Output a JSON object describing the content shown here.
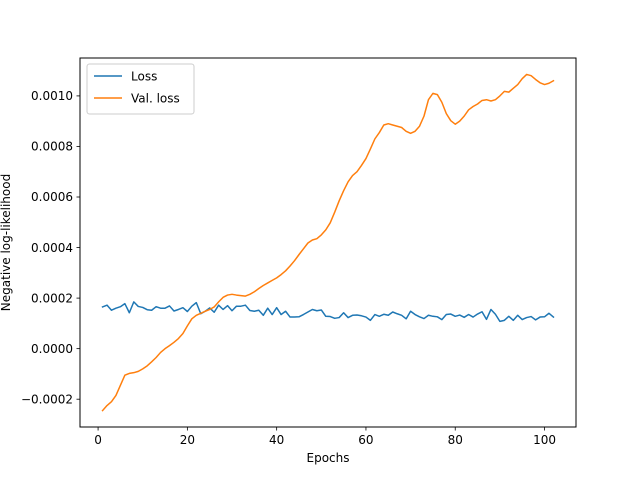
{
  "chart_data": {
    "type": "line",
    "title": "",
    "xlabel": "Epochs",
    "ylabel": "Negative log-likelihood",
    "xlim": [
      -4.05,
      107.05
    ],
    "ylim": [
      -0.00031,
      0.00115
    ],
    "xticks": [
      0,
      20,
      40,
      60,
      80,
      100
    ],
    "xtick_labels": [
      "0",
      "20",
      "40",
      "60",
      "80",
      "100"
    ],
    "yticks": [
      -0.0002,
      0.0,
      0.0002,
      0.0004,
      0.0006,
      0.0008,
      0.001
    ],
    "ytick_labels": [
      "−0.0002",
      "0.0000",
      "0.0002",
      "0.0004",
      "0.0006",
      "0.0008",
      "0.0010"
    ],
    "grid": false,
    "legend_position": "top-left",
    "series": [
      {
        "name": "Loss",
        "color": "#1f77b4",
        "x": [
          1,
          2,
          3,
          4,
          5,
          6,
          7,
          8,
          9,
          10,
          11,
          12,
          13,
          14,
          15,
          16,
          17,
          18,
          19,
          20,
          21,
          22,
          23,
          24,
          25,
          26,
          27,
          28,
          29,
          30,
          31,
          32,
          33,
          34,
          35,
          36,
          37,
          38,
          39,
          40,
          41,
          42,
          43,
          44,
          45,
          46,
          47,
          48,
          49,
          50,
          51,
          52,
          53,
          54,
          55,
          56,
          57,
          58,
          59,
          60,
          61,
          62,
          63,
          64,
          65,
          66,
          67,
          68,
          69,
          70,
          71,
          72,
          73,
          74,
          75,
          76,
          77,
          78,
          79,
          80,
          81,
          82,
          83,
          84,
          85,
          86,
          87,
          88,
          89,
          90,
          91,
          92,
          93,
          94,
          95,
          96,
          97,
          98,
          99,
          100,
          101,
          102
        ],
        "y": [
          0.000165,
          0.000172,
          0.000152,
          0.00016,
          0.000166,
          0.000178,
          0.000142,
          0.000185,
          0.000167,
          0.000163,
          0.000154,
          0.000152,
          0.000166,
          0.00016,
          0.00016,
          0.000169,
          0.000149,
          0.000155,
          0.000162,
          0.000147,
          0.000168,
          0.000182,
          0.000138,
          0.000148,
          0.000161,
          0.000144,
          0.000172,
          0.000155,
          0.00017,
          0.00015,
          0.000168,
          0.000168,
          0.000172,
          0.000151,
          0.000148,
          0.000152,
          0.000132,
          0.00016,
          0.000135,
          0.000162,
          0.000135,
          0.000148,
          0.000125,
          0.000125,
          0.000126,
          0.000135,
          0.000145,
          0.000155,
          0.00015,
          0.000153,
          0.000128,
          0.000127,
          0.00012,
          0.000123,
          0.000142,
          0.000123,
          0.000132,
          0.000133,
          0.00013,
          0.000125,
          0.000112,
          0.000135,
          0.000128,
          0.000136,
          0.000132,
          0.000145,
          0.000138,
          0.000132,
          0.000118,
          0.000148,
          0.000135,
          0.000126,
          0.000119,
          0.000132,
          0.000128,
          0.000126,
          0.000115,
          0.000135,
          0.000137,
          0.000128,
          0.000133,
          0.000124,
          0.000135,
          0.000125,
          0.000137,
          0.000146,
          0.000116,
          0.000155,
          0.000136,
          0.000108,
          0.000112,
          0.000128,
          0.000112,
          0.000132,
          0.000115,
          0.000123,
          0.000127,
          0.000114,
          0.000125,
          0.000126,
          0.00014,
          0.000125
        ]
      },
      {
        "name": "Val. loss",
        "color": "#ff7f0e",
        "x": [
          1,
          2,
          3,
          4,
          5,
          6,
          7,
          8,
          9,
          10,
          11,
          12,
          13,
          14,
          15,
          16,
          17,
          18,
          19,
          20,
          21,
          22,
          23,
          24,
          25,
          26,
          27,
          28,
          29,
          30,
          31,
          32,
          33,
          34,
          35,
          36,
          37,
          38,
          39,
          40,
          41,
          42,
          43,
          44,
          45,
          46,
          47,
          48,
          49,
          50,
          51,
          52,
          53,
          54,
          55,
          56,
          57,
          58,
          59,
          60,
          61,
          62,
          63,
          64,
          65,
          66,
          67,
          68,
          69,
          70,
          71,
          72,
          73,
          74,
          75,
          76,
          77,
          78,
          79,
          80,
          81,
          82,
          83,
          84,
          85,
          86,
          87,
          88,
          89,
          90,
          91,
          92,
          93,
          94,
          95,
          96,
          97,
          98,
          99,
          100,
          101,
          102
        ],
        "y": [
          -0.000245,
          -0.000225,
          -0.00021,
          -0.000185,
          -0.000145,
          -0.000105,
          -9.8e-05,
          -9.5e-05,
          -9e-05,
          -8e-05,
          -6.8e-05,
          -5.2e-05,
          -3.5e-05,
          -1.5e-05,
          0.0,
          1.2e-05,
          2.5e-05,
          4e-05,
          6e-05,
          9e-05,
          0.000118,
          0.000132,
          0.00014,
          0.000148,
          0.000155,
          0.000165,
          0.000185,
          0.000203,
          0.000212,
          0.000215,
          0.000212,
          0.00021,
          0.000208,
          0.000215,
          0.000225,
          0.000238,
          0.00025,
          0.00026,
          0.00027,
          0.00028,
          0.000293,
          0.000308,
          0.000327,
          0.000348,
          0.000372,
          0.000395,
          0.000418,
          0.00043,
          0.000435,
          0.00045,
          0.00047,
          0.000498,
          0.00054,
          0.000585,
          0.000625,
          0.00066,
          0.000685,
          0.0007,
          0.000725,
          0.000752,
          0.00079,
          0.00083,
          0.000855,
          0.000885,
          0.00089,
          0.000885,
          0.00088,
          0.000875,
          0.00086,
          0.000852,
          0.00086,
          0.00088,
          0.00092,
          0.000985,
          0.00101,
          0.001005,
          0.000975,
          0.00093,
          0.000902,
          0.000888,
          0.0009,
          0.00092,
          0.000945,
          0.000958,
          0.000968,
          0.000982,
          0.000985,
          0.00098,
          0.000985,
          0.001,
          0.001018,
          0.001015,
          0.00103,
          0.001045,
          0.001068,
          0.001085,
          0.00108,
          0.001065,
          0.001052,
          0.001045,
          0.00105,
          0.00106
        ]
      }
    ]
  }
}
